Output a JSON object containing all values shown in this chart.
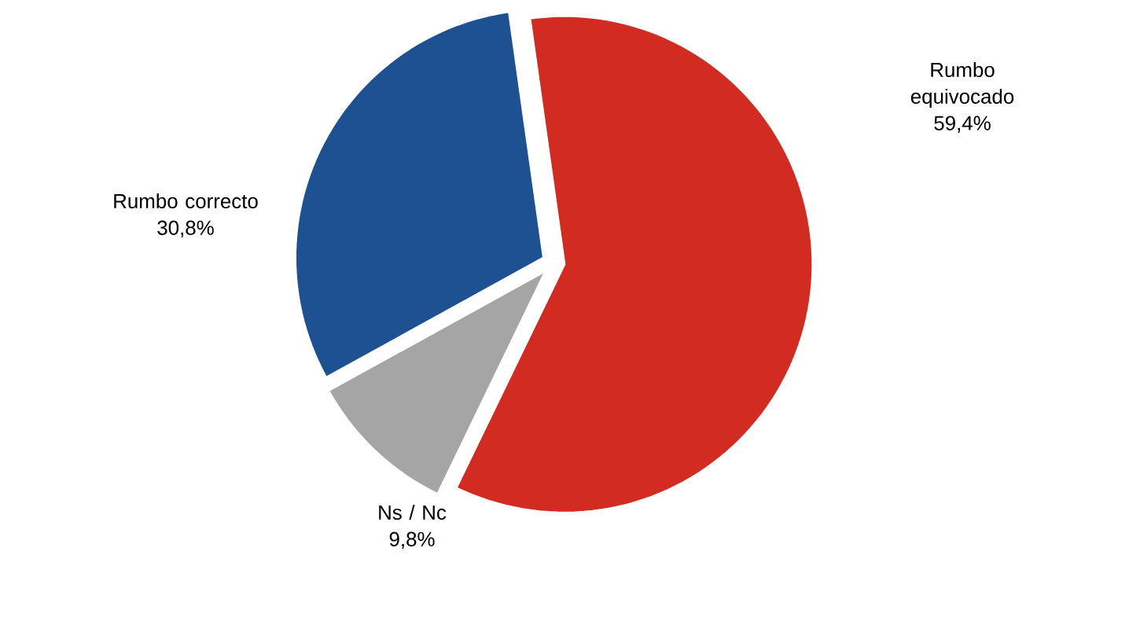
{
  "chart_data": {
    "type": "pie",
    "categories": [
      "Rumbo equivocado",
      "Ns / Nc",
      "Rumbo correcto"
    ],
    "values": [
      59.4,
      9.8,
      30.8
    ],
    "value_labels": [
      "59,4%",
      "9,8%",
      "30,8%"
    ],
    "colors": [
      "#d22b21",
      "#a5a5a5",
      "#1d5192"
    ]
  }
}
